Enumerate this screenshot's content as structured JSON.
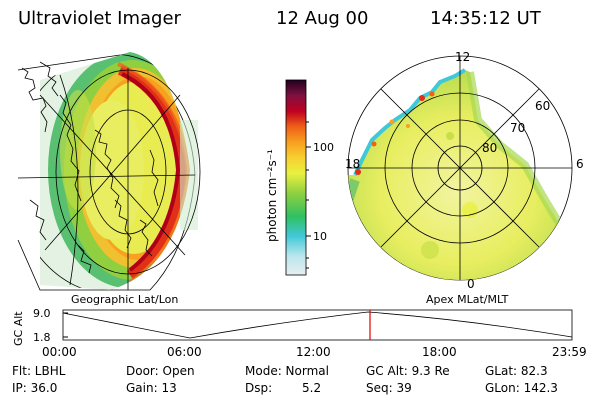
{
  "header": {
    "title": "Ultraviolet Imager",
    "date": "12 Aug 00",
    "time": "14:35:12 UT"
  },
  "left_panel": {
    "label": "Geographic Lat/Lon"
  },
  "right_panel": {
    "label": "Apex MLat/MLT",
    "mlt_labels": [
      "12",
      "18",
      "6",
      "0"
    ],
    "mlat_labels": [
      "60",
      "70",
      "80"
    ]
  },
  "colorbar": {
    "unit_label": "photon cm⁻²s⁻¹",
    "tick_labels": [
      "100",
      "10"
    ],
    "scale": "log",
    "colors": [
      "#e8eef0",
      "#b8e6ec",
      "#40c8d8",
      "#30c060",
      "#90d040",
      "#e8f040",
      "#f8d030",
      "#f8a020",
      "#f06018",
      "#c00020",
      "#801040",
      "#401850",
      "#200020"
    ]
  },
  "altitude_plot": {
    "ylabel": "GC Alt",
    "y_ticks": [
      "9.0",
      "1.8"
    ],
    "x_ticks": [
      "00:00",
      "06:00",
      "12:00",
      "18:00",
      "23:59"
    ],
    "current_marker_time": "14:35",
    "marker_color": "#e00000"
  },
  "info": {
    "flt": "Flt: LBHL",
    "ip": "IP: 36.0",
    "door": "Door: Open",
    "gain": "Gain: 13",
    "mode": "Mode: Normal",
    "dsp_label": "Dsp:",
    "dsp_value": "5.2",
    "gcalt": "GC Alt: 9.3 Re",
    "seq": "Seq: 39",
    "glat": "GLat: 82.3",
    "glon": "GLon: 142.3"
  }
}
